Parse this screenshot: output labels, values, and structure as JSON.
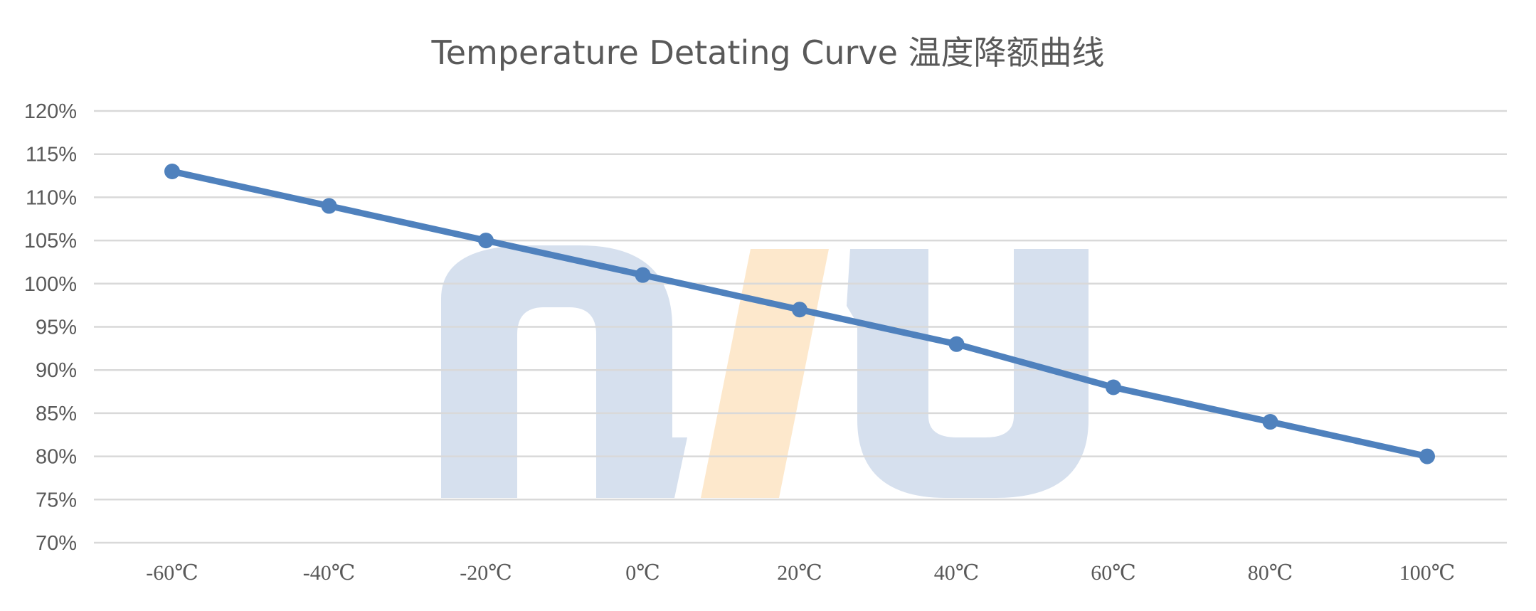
{
  "chart_data": {
    "type": "line",
    "title": "Temperature Detating Curve 温度降额曲线",
    "xlabel": "",
    "ylabel": "",
    "categories": [
      "-60℃",
      "-40℃",
      "-20℃",
      "0℃",
      "20℃",
      "40℃",
      "60℃",
      "80℃",
      "100℃"
    ],
    "series": [
      {
        "values": [
          113,
          109,
          105,
          101,
          97,
          93,
          88,
          84,
          80
        ],
        "color": "#4F81BD"
      }
    ],
    "ylim": [
      70,
      120
    ],
    "y_ticks": [
      "70%",
      "75%",
      "80%",
      "85%",
      "90%",
      "95%",
      "100%",
      "105%",
      "110%",
      "115%",
      "120%"
    ],
    "y_unit": "%",
    "grid": true,
    "legend": "none",
    "watermark": {
      "text": "n/u",
      "colors": [
        "#D6E0EE",
        "#FDE8CC"
      ]
    }
  }
}
